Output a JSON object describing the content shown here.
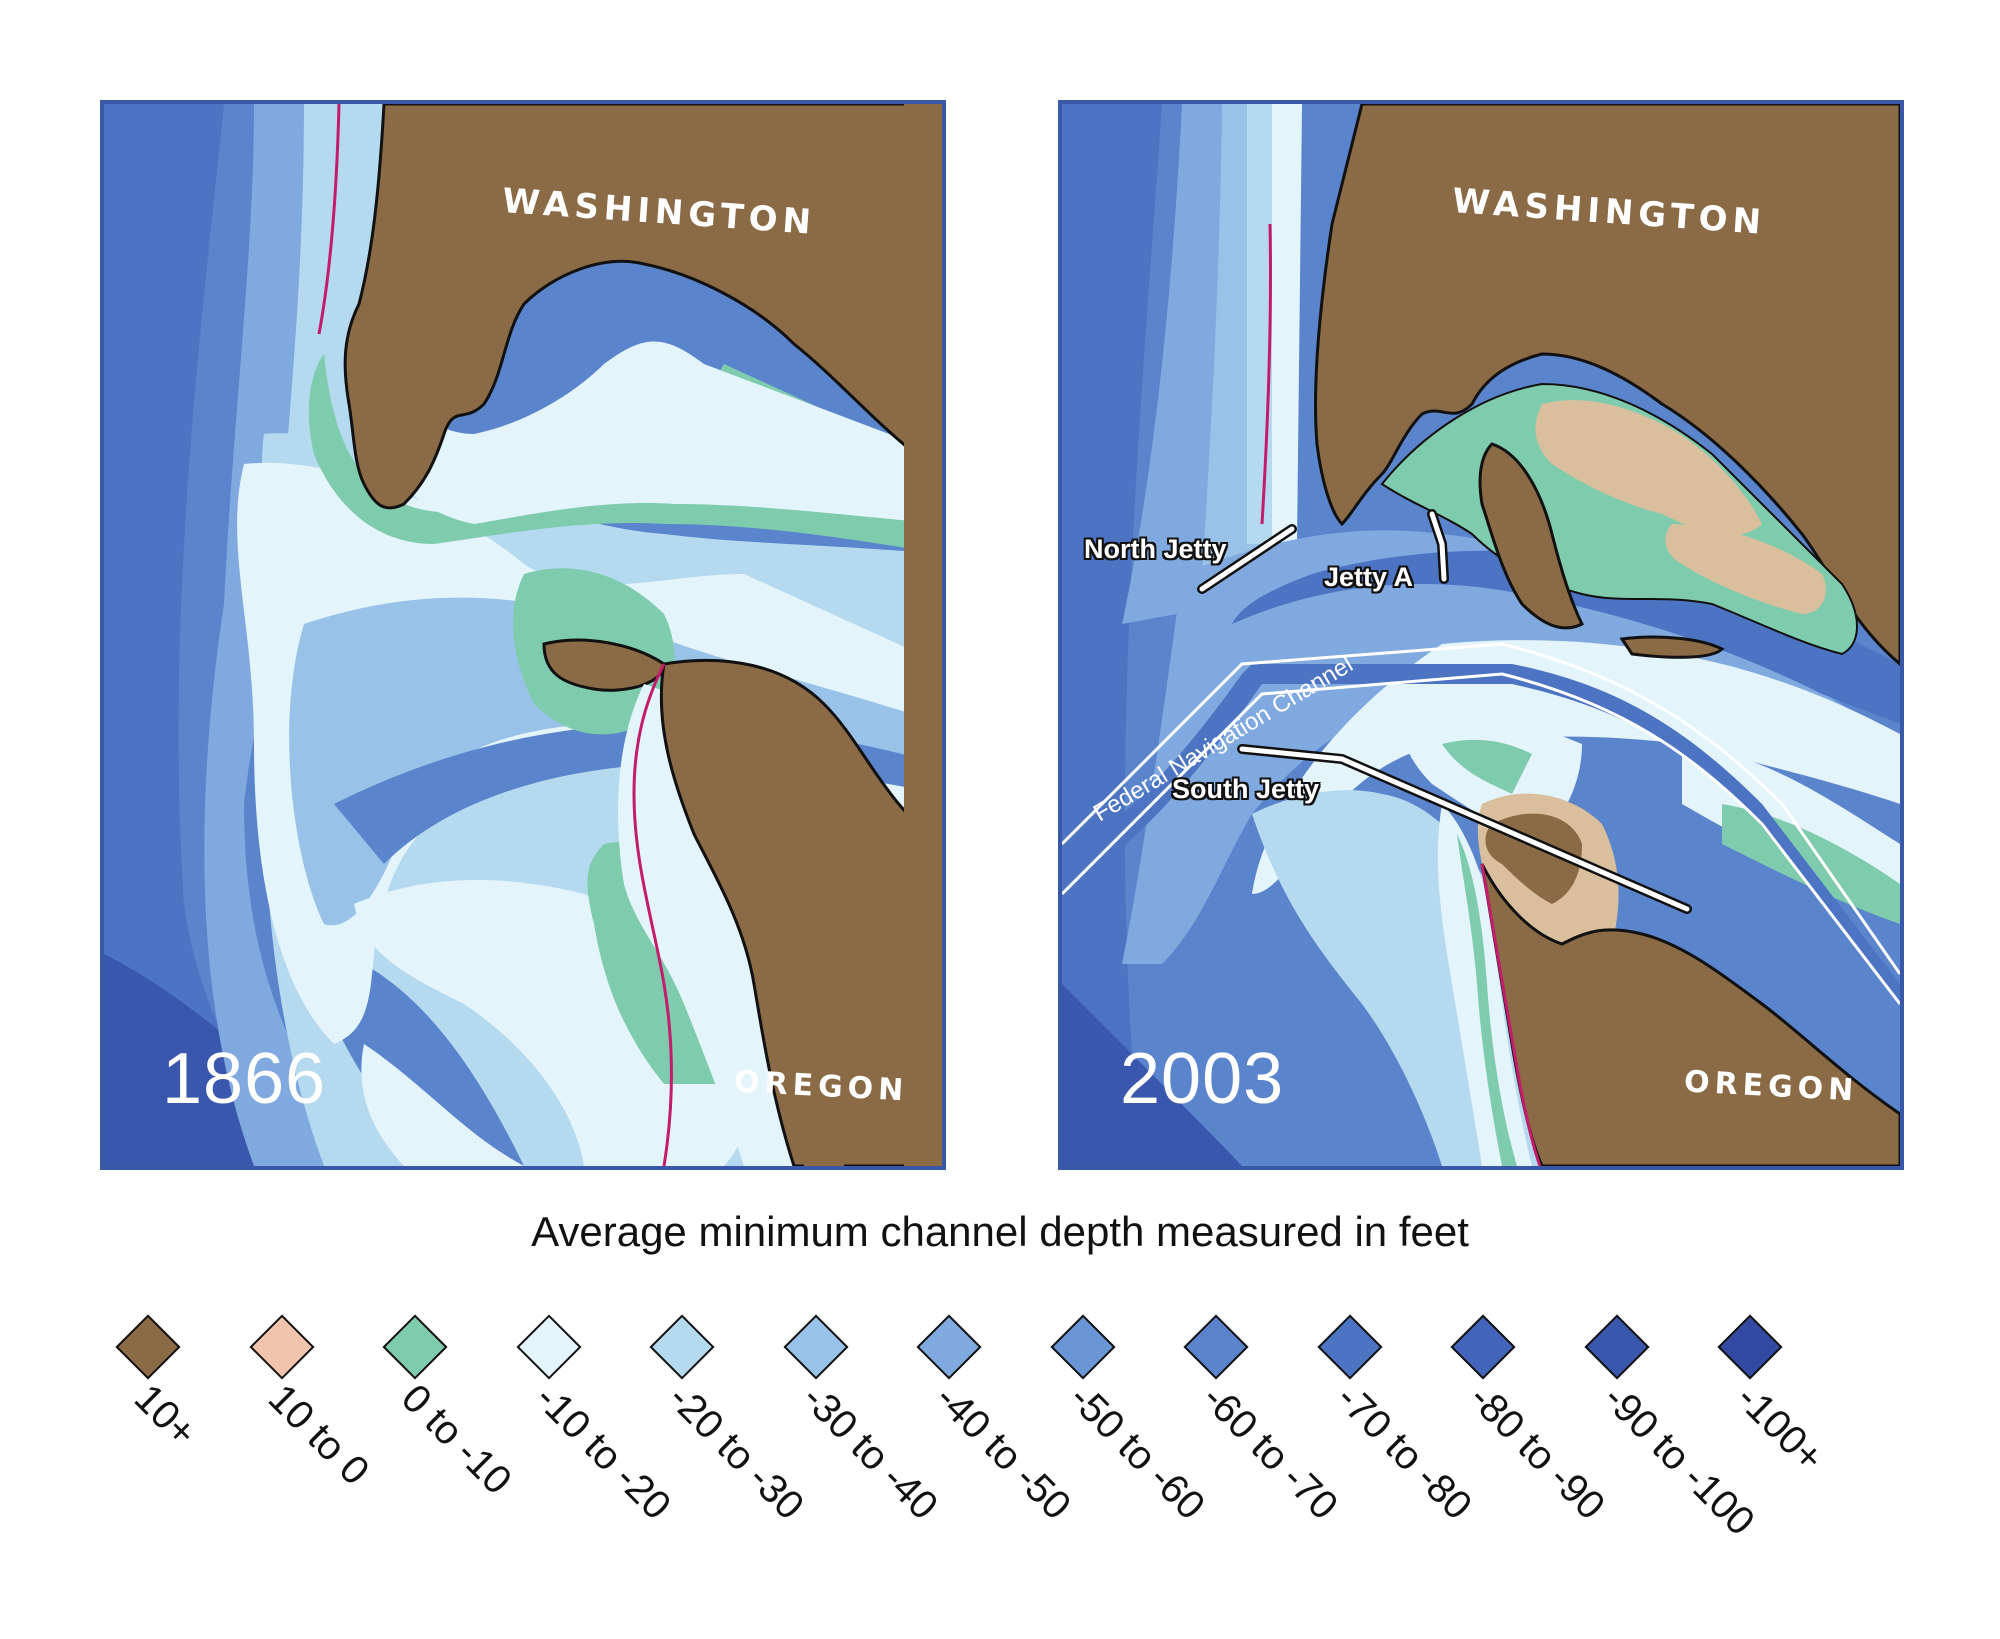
{
  "maps": [
    {
      "year": "1866",
      "north_label": "WASHINGTON",
      "south_label": "OREGON"
    },
    {
      "year": "2003",
      "north_label": "WASHINGTON",
      "south_label": "OREGON",
      "features": {
        "north_jetty": "North Jetty",
        "jetty_a": "Jetty A",
        "south_jetty": "South Jetty",
        "channel": "Federal Navigation Channel"
      }
    }
  ],
  "legend": {
    "title": "Average minimum channel depth measured in feet",
    "items": [
      {
        "label": "10+",
        "color": "#8b6b45"
      },
      {
        "label": "10 to 0",
        "color": "#f2c4ad"
      },
      {
        "label": "0 to -10",
        "color": "#7fcbad"
      },
      {
        "label": "-10 to -20",
        "color": "#e4f4fb"
      },
      {
        "label": "-20 to -30",
        "color": "#b5daf0"
      },
      {
        "label": "-30 to -40",
        "color": "#99c2e8"
      },
      {
        "label": "-40 to -50",
        "color": "#80aadf"
      },
      {
        "label": "-50 to -60",
        "color": "#6b96d6"
      },
      {
        "label": "-60 to -70",
        "color": "#5a84cc"
      },
      {
        "label": "-70 to -80",
        "color": "#4c74c3"
      },
      {
        "label": "-80 to -90",
        "color": "#4265b9"
      },
      {
        "label": "-90 to -100",
        "color": "#3a57ae"
      },
      {
        "label": "-100+",
        "color": "#334aa2"
      }
    ]
  }
}
